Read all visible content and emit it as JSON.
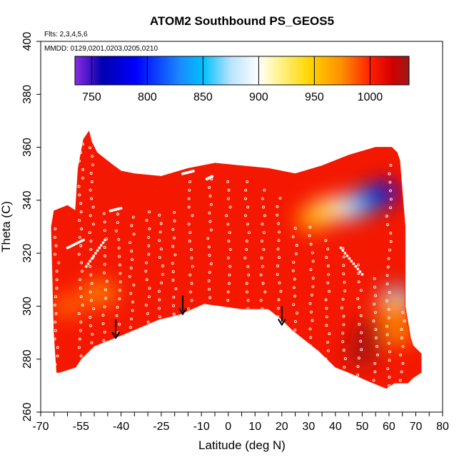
{
  "chart_data": {
    "type": "heatmap",
    "title": "ATOM2 Southbound PS_GEOS5",
    "subtitle_lines": [
      "Flts: 2,3,4,5,6",
      "MMDD: 0129,0201,0203,0205,0210"
    ],
    "xlabel": "Latitude (deg N)",
    "ylabel": "Theta (C)",
    "xlim": [
      -70,
      80
    ],
    "ylim": [
      260,
      400
    ],
    "x_tick_labels": [
      -70,
      -55,
      -40,
      -25,
      -10,
      0,
      10,
      20,
      30,
      40,
      50,
      60,
      70,
      80
    ],
    "x_minor_ticks": [
      -65,
      -60,
      -50,
      -45,
      -35,
      -30,
      -20,
      -15,
      -5,
      5,
      15,
      25,
      35,
      45,
      55,
      65,
      75
    ],
    "y_ticks": [
      260,
      280,
      300,
      320,
      340,
      360,
      380,
      400
    ],
    "colorbar": {
      "range": [
        735,
        1035
      ],
      "tick_labels": [
        750,
        800,
        850,
        900,
        950,
        1000
      ],
      "stops": [
        {
          "value": 735,
          "color": "#8a2be2"
        },
        {
          "value": 760,
          "color": "#0000b0"
        },
        {
          "value": 790,
          "color": "#0000ff"
        },
        {
          "value": 830,
          "color": "#1a8cff"
        },
        {
          "value": 850,
          "color": "#00bfff"
        },
        {
          "value": 875,
          "color": "#b8e4ff"
        },
        {
          "value": 900,
          "color": "#ffffff"
        },
        {
          "value": 915,
          "color": "#fff6a0"
        },
        {
          "value": 945,
          "color": "#ffd700"
        },
        {
          "value": 975,
          "color": "#ff8c00"
        },
        {
          "value": 1000,
          "color": "#ff2000"
        },
        {
          "value": 1020,
          "color": "#d40000"
        },
        {
          "value": 1035,
          "color": "#9a1a1a"
        }
      ]
    },
    "field": {
      "base_value": 1005,
      "upper_boundary": [
        [
          -57,
          336
        ],
        [
          -56,
          352
        ],
        [
          -54,
          363
        ],
        [
          -52,
          366
        ],
        [
          -51,
          362
        ],
        [
          -49,
          358
        ],
        [
          -44,
          354
        ],
        [
          -40,
          351
        ],
        [
          -35,
          350
        ],
        [
          -25,
          349
        ],
        [
          -15,
          352
        ],
        [
          -5,
          354
        ],
        [
          5,
          353
        ],
        [
          15,
          352
        ],
        [
          25,
          350
        ],
        [
          35,
          353
        ],
        [
          45,
          357
        ],
        [
          55,
          360
        ],
        [
          61,
          360
        ],
        [
          63,
          358
        ],
        [
          64,
          355
        ],
        [
          66,
          330
        ],
        [
          66,
          300
        ],
        [
          68,
          288
        ],
        [
          69,
          285
        ],
        [
          72,
          282
        ]
      ],
      "lower_boundary": [
        [
          72,
          275
        ],
        [
          69,
          273
        ],
        [
          67,
          271
        ],
        [
          62,
          271
        ],
        [
          59,
          269
        ],
        [
          54,
          271
        ],
        [
          45,
          275
        ],
        [
          40,
          277
        ],
        [
          34,
          283
        ],
        [
          24,
          291
        ],
        [
          20,
          295
        ],
        [
          15,
          299
        ],
        [
          5,
          299
        ],
        [
          -9,
          301
        ],
        [
          -18,
          297
        ],
        [
          -26,
          295
        ],
        [
          -40,
          289
        ],
        [
          -50,
          285
        ],
        [
          -55,
          280
        ],
        [
          -57,
          277
        ],
        [
          -63,
          275
        ],
        [
          -64,
          275
        ]
      ],
      "left_wall": [
        [
          -64,
          275
        ],
        [
          -65,
          290
        ],
        [
          -66,
          330
        ],
        [
          -65,
          336
        ],
        [
          -60,
          338
        ],
        [
          -57,
          336
        ]
      ],
      "blobs": [
        {
          "x": 58,
          "y": 343,
          "value": 752
        },
        {
          "x": 54,
          "y": 341,
          "value": 775
        },
        {
          "x": 49,
          "y": 339,
          "value": 820
        },
        {
          "x": 45,
          "y": 337,
          "value": 850
        },
        {
          "x": 41,
          "y": 337,
          "value": 885
        },
        {
          "x": 36,
          "y": 336,
          "value": 925
        },
        {
          "x": 32,
          "y": 333,
          "value": 960
        },
        {
          "x": 63,
          "y": 303,
          "value": 850
        },
        {
          "x": 62,
          "y": 300,
          "value": 960
        },
        {
          "x": 63,
          "y": 290,
          "value": 975
        },
        {
          "x": 52,
          "y": 290,
          "value": 1030
        },
        {
          "x": 50,
          "y": 282,
          "value": 1032
        },
        {
          "x": -48,
          "y": 305,
          "value": 975
        },
        {
          "x": -60,
          "y": 300,
          "value": 985
        }
      ]
    },
    "arrows": [
      {
        "x": -42,
        "y_top": 295,
        "y_bottom": 288
      },
      {
        "x": -17,
        "y_top": 304,
        "y_bottom": 297
      },
      {
        "x": 20,
        "y_top": 300,
        "y_bottom": 293
      }
    ],
    "flight_tracks": [
      {
        "x": -55,
        "y0": 278,
        "y1": 365
      },
      {
        "x": -51,
        "y0": 283,
        "y1": 360
      },
      {
        "x": -46,
        "y0": 287,
        "y1": 337
      },
      {
        "x": -41,
        "y0": 290,
        "y1": 336
      },
      {
        "x": -36,
        "y0": 292,
        "y1": 334
      },
      {
        "x": -30,
        "y0": 294,
        "y1": 336
      },
      {
        "x": -25,
        "y0": 296,
        "y1": 336
      },
      {
        "x": -20,
        "y0": 297,
        "y1": 336
      },
      {
        "x": -14,
        "y0": 299,
        "y1": 349
      },
      {
        "x": -7,
        "y0": 300,
        "y1": 348
      },
      {
        "x": 0,
        "y0": 299,
        "y1": 350
      },
      {
        "x": 7,
        "y0": 299,
        "y1": 347
      },
      {
        "x": 13,
        "y0": 299,
        "y1": 346
      },
      {
        "x": 19,
        "y0": 296,
        "y1": 343
      },
      {
        "x": 25,
        "y0": 291,
        "y1": 332
      },
      {
        "x": 31,
        "y0": 285,
        "y1": 330
      },
      {
        "x": 37,
        "y0": 280,
        "y1": 326
      },
      {
        "x": 43,
        "y0": 277,
        "y1": 322
      },
      {
        "x": 49,
        "y0": 274,
        "y1": 318
      },
      {
        "x": 55,
        "y0": 272,
        "y1": 312
      },
      {
        "x": 60,
        "y0": 270,
        "y1": 355
      },
      {
        "x": 65,
        "y0": 272,
        "y1": 300
      },
      {
        "x": -64,
        "y0": 278,
        "y1": 330
      }
    ],
    "flight_legs": [
      {
        "x0": -60,
        "y0": 322,
        "x1": -54,
        "y1": 325
      },
      {
        "x0": -53,
        "y0": 315,
        "x1": -46,
        "y1": 325
      },
      {
        "x0": -44,
        "y0": 336,
        "x1": -40,
        "y1": 337
      },
      {
        "x0": -17,
        "y0": 350,
        "x1": -13,
        "y1": 351
      },
      {
        "x0": -8,
        "y0": 348,
        "x1": -6,
        "y1": 349
      },
      {
        "x0": 42,
        "y0": 322,
        "x1": 50,
        "y1": 312
      }
    ],
    "grid": false,
    "legend": "colorbar at top inside plot"
  }
}
